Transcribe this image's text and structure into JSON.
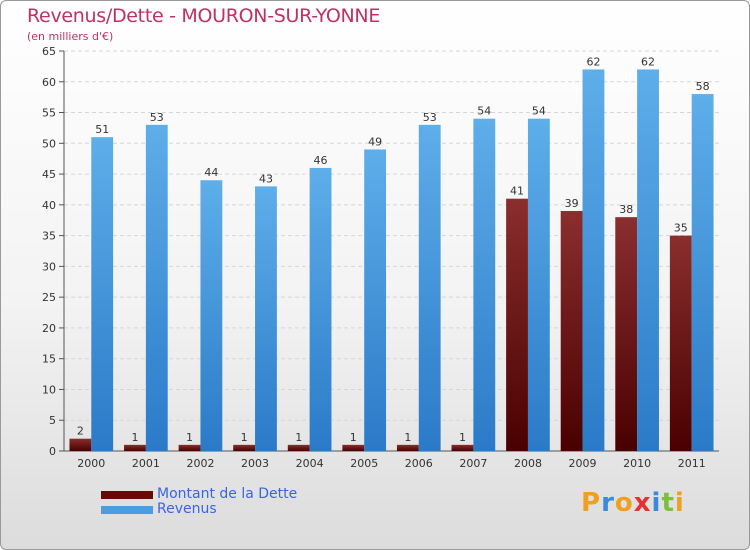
{
  "chart_data": {
    "type": "bar",
    "title": "Revenus/Dette - MOURON-SUR-YONNE",
    "subtitle": "(en milliers d'€)",
    "categories": [
      "2000",
      "2001",
      "2002",
      "2003",
      "2004",
      "2005",
      "2006",
      "2007",
      "2008",
      "2009",
      "2010",
      "2011"
    ],
    "series": [
      {
        "name": "Montant de la Dette",
        "color": "#7a0c0c",
        "values": [
          2,
          1,
          1,
          1,
          1,
          1,
          1,
          1,
          41,
          39,
          38,
          35
        ]
      },
      {
        "name": "Revenus",
        "color": "#4a9de0",
        "values": [
          51,
          53,
          44,
          43,
          46,
          49,
          53,
          54,
          54,
          62,
          62,
          58
        ]
      }
    ],
    "ylim": [
      0,
      65
    ],
    "yticks": [
      0,
      5,
      10,
      15,
      20,
      25,
      30,
      35,
      40,
      45,
      50,
      55,
      60,
      65
    ],
    "grid": true,
    "legend_position": "bottom-left"
  },
  "logo": {
    "letters": [
      "P",
      "r",
      "o",
      "x",
      "i",
      "t",
      "i"
    ],
    "colors": [
      "#f0a020",
      "#3a8ad8",
      "#f0a020",
      "#e83030",
      "#3a8ad8",
      "#7ac03a",
      "#f0a020"
    ]
  }
}
